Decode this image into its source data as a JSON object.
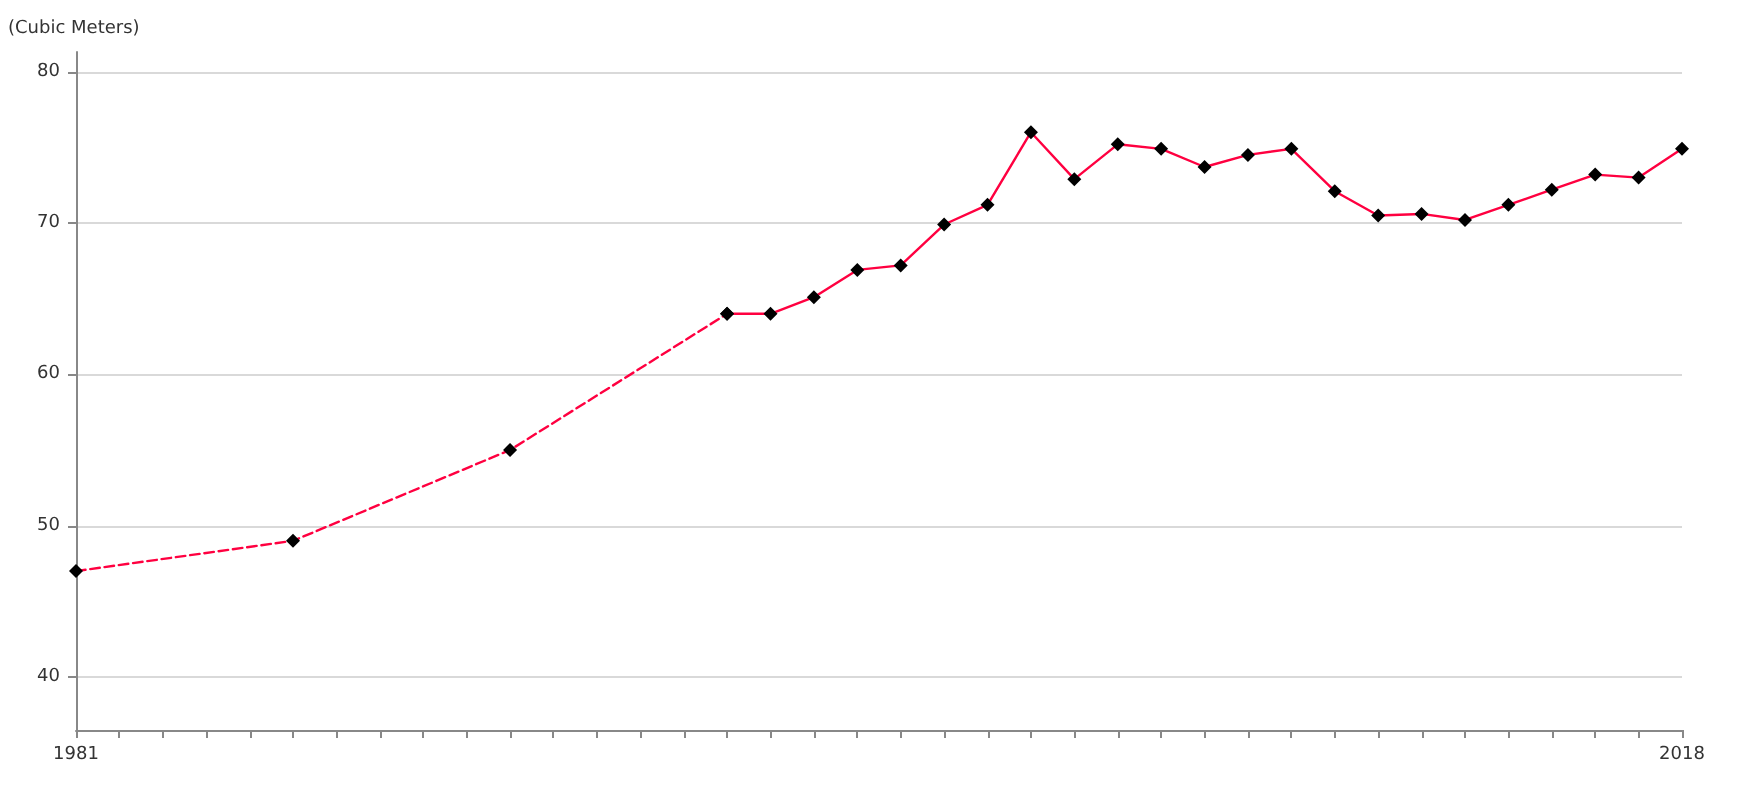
{
  "chart_data": {
    "type": "line",
    "ylabel": "(Cubic Meters)",
    "xlim": [
      1981,
      2018
    ],
    "ylim": [
      36.5,
      81.3
    ],
    "xticks": [
      1981,
      {
        "value": 1982,
        "label": null
      },
      {
        "value": 1983,
        "label": null
      },
      {
        "value": 1984,
        "label": null
      },
      {
        "value": 1985,
        "label": null
      },
      {
        "value": 1986,
        "label": null
      },
      {
        "value": 1987,
        "label": null
      },
      {
        "value": 1988,
        "label": null
      },
      {
        "value": 1989,
        "label": null
      },
      {
        "value": 1990,
        "label": null
      },
      {
        "value": 1991,
        "label": null
      },
      {
        "value": 1992,
        "label": null
      },
      {
        "value": 1993,
        "label": null
      },
      {
        "value": 1994,
        "label": null
      },
      {
        "value": 1995,
        "label": null
      },
      {
        "value": 1996,
        "label": null
      },
      {
        "value": 1997,
        "label": null
      },
      {
        "value": 1998,
        "label": null
      },
      {
        "value": 1999,
        "label": null
      },
      {
        "value": 2000,
        "label": null
      },
      {
        "value": 2001,
        "label": null
      },
      {
        "value": 2002,
        "label": null
      },
      {
        "value": 2003,
        "label": null
      },
      {
        "value": 2004,
        "label": null
      },
      {
        "value": 2005,
        "label": null
      },
      {
        "value": 2006,
        "label": null
      },
      {
        "value": 2007,
        "label": null
      },
      {
        "value": 2008,
        "label": null
      },
      {
        "value": 2009,
        "label": null
      },
      {
        "value": 2010,
        "label": null
      },
      {
        "value": 2011,
        "label": null
      },
      {
        "value": 2012,
        "label": null
      },
      {
        "value": 2013,
        "label": null
      },
      {
        "value": 2014,
        "label": null
      },
      {
        "value": 2015,
        "label": null
      },
      {
        "value": 2016,
        "label": null
      },
      {
        "value": 2017,
        "label": null
      },
      2018
    ],
    "yticks": [
      40,
      50,
      60,
      70,
      80
    ],
    "grid": "y",
    "marker": "diamond",
    "series": [
      {
        "color": "#ff0040",
        "line_style": "dashed",
        "x": [
          1981,
          1986,
          1991,
          1996
        ],
        "values": [
          47.0,
          49.0,
          55.0,
          64.0
        ]
      },
      {
        "color": "#ff0040",
        "line_style": "solid",
        "x": [
          1996,
          1997,
          1998,
          1999,
          2000,
          2001,
          2002,
          2003,
          2004,
          2005,
          2006,
          2007,
          2008,
          2009,
          2010,
          2011,
          2012,
          2013,
          2014,
          2015,
          2016,
          2017,
          2018
        ],
        "values": [
          64.0,
          64.0,
          65.1,
          66.9,
          67.2,
          69.9,
          71.2,
          76.0,
          72.9,
          75.2,
          74.9,
          73.7,
          74.5,
          74.9,
          72.1,
          70.5,
          70.6,
          70.2,
          71.2,
          72.2,
          73.2,
          73.0,
          74.9
        ]
      }
    ]
  }
}
